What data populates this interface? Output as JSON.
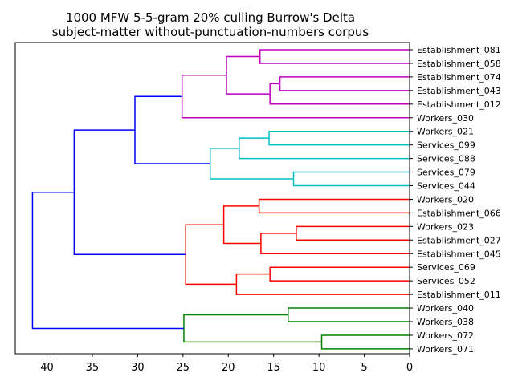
{
  "chart_data": {
    "type": "dendrogram",
    "title_lines": [
      "1000 MFW 5-5-gram 20% culling Burrow's Delta",
      "subject-matter without-punctuation-numbers corpus"
    ],
    "orientation": "left",
    "xlim": [
      43.5,
      0
    ],
    "x_ticks": [
      40,
      35,
      30,
      25,
      20,
      15,
      10,
      5,
      0
    ],
    "leaves": [
      "Establishment_081",
      "Establishment_058",
      "Establishment_074",
      "Establishment_043",
      "Establishment_012",
      "Workers_030",
      "Workers_021",
      "Services_099",
      "Services_088",
      "Services_079",
      "Services_044",
      "Workers_020",
      "Establishment_066",
      "Workers_023",
      "Establishment_027",
      "Establishment_045",
      "Services_069",
      "Services_052",
      "Establishment_011",
      "Workers_040",
      "Workers_038",
      "Workers_072",
      "Workers_071"
    ],
    "merges": [
      {
        "id": "n1",
        "a": "Establishment_081",
        "b": "Establishment_058",
        "height": 16.5,
        "color": "#bf00bf"
      },
      {
        "id": "n2",
        "a": "Establishment_074",
        "b": "Establishment_043",
        "height": 14.3,
        "color": "#bf00bf"
      },
      {
        "id": "n3",
        "a": "n2",
        "b": "Establishment_012",
        "height": 15.4,
        "color": "#bf00bf"
      },
      {
        "id": "n4",
        "a": "n1",
        "b": "n3",
        "height": 20.2,
        "color": "#bf00bf"
      },
      {
        "id": "n5",
        "a": "n4",
        "b": "Workers_030",
        "height": 25.1,
        "color": "#bf00bf"
      },
      {
        "id": "n6",
        "a": "Workers_021",
        "b": "Services_099",
        "height": 15.5,
        "color": "#00bfbf"
      },
      {
        "id": "n7",
        "a": "n6",
        "b": "Services_088",
        "height": 18.8,
        "color": "#00bfbf"
      },
      {
        "id": "n8",
        "a": "Services_079",
        "b": "Services_044",
        "height": 12.8,
        "color": "#00bfbf"
      },
      {
        "id": "n9",
        "a": "n7",
        "b": "n8",
        "height": 22.0,
        "color": "#00bfbf"
      },
      {
        "id": "n10",
        "a": "n5",
        "b": "n9",
        "height": 30.3,
        "color": "#0000ff"
      },
      {
        "id": "n11",
        "a": "Workers_020",
        "b": "Establishment_066",
        "height": 16.6,
        "color": "#ff0000"
      },
      {
        "id": "n12",
        "a": "Workers_023",
        "b": "Establishment_027",
        "height": 12.5,
        "color": "#ff0000"
      },
      {
        "id": "n13",
        "a": "n12",
        "b": "Establishment_045",
        "height": 16.4,
        "color": "#ff0000"
      },
      {
        "id": "n14",
        "a": "n11",
        "b": "n13",
        "height": 20.5,
        "color": "#ff0000"
      },
      {
        "id": "n15",
        "a": "Services_069",
        "b": "Services_052",
        "height": 15.4,
        "color": "#ff0000"
      },
      {
        "id": "n16",
        "a": "n15",
        "b": "Establishment_011",
        "height": 19.1,
        "color": "#ff0000"
      },
      {
        "id": "n17",
        "a": "n14",
        "b": "n16",
        "height": 24.7,
        "color": "#ff0000"
      },
      {
        "id": "n18",
        "a": "n10",
        "b": "n17",
        "height": 37.0,
        "color": "#0000ff"
      },
      {
        "id": "n19",
        "a": "Workers_040",
        "b": "Workers_038",
        "height": 13.4,
        "color": "#008000"
      },
      {
        "id": "n20",
        "a": "Workers_072",
        "b": "Workers_071",
        "height": 9.7,
        "color": "#008000"
      },
      {
        "id": "n21",
        "a": "n19",
        "b": "n20",
        "height": 24.9,
        "color": "#008000"
      },
      {
        "id": "n22",
        "a": "n18",
        "b": "n21",
        "height": 41.6,
        "color": "#0000ff"
      }
    ],
    "grid": false,
    "legend": "none"
  }
}
